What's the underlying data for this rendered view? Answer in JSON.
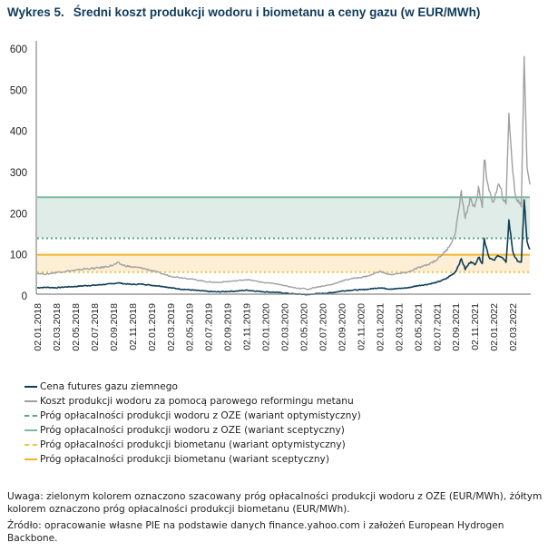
{
  "chart_data": {
    "type": "line",
    "title_number": "Wykres 5.",
    "title": "Średni koszt produkcji wodoru i biometanu a ceny gazu (w EUR/MWh)",
    "xlabel": "",
    "ylabel": "",
    "ylim": [
      0,
      600
    ],
    "yticks": [
      "0",
      "100",
      "200",
      "300",
      "400",
      "500",
      "600"
    ],
    "xticks": [
      "02.01.2018",
      "02.03.2018",
      "02.05.2018",
      "02.07.2018",
      "02.09.2018",
      "02.11.2018",
      "02.01.2019",
      "02.03.2019",
      "02.05.2019",
      "02.07.2019",
      "02.09.2019",
      "02.11.2019",
      "02.01.2020",
      "02.03.2020",
      "02.05.2020",
      "02.07.2020",
      "02.09.2020",
      "02.11.2020",
      "02.01.2021",
      "02.03.2021",
      "02.05.2021",
      "02.07.2021",
      "02.09.2021",
      "02.11.2021",
      "02.01.2022",
      "02.03.2022"
    ],
    "x_unit": "months since 02.01.2018",
    "x_range": [
      0,
      51.8
    ],
    "grid": false,
    "legend_position": "bottom-left",
    "series": [
      {
        "name": "Cena futures gazu ziemnego",
        "color": "#0d3d56",
        "style": "solid",
        "x": [
          0,
          1,
          2,
          3,
          4,
          5,
          6,
          7,
          8,
          8.5,
          9,
          10,
          11,
          12,
          13,
          14,
          15,
          16,
          17,
          18,
          19,
          20,
          21,
          22,
          23,
          24,
          25,
          26,
          27,
          28,
          28.5,
          29,
          30,
          31,
          32,
          33,
          34,
          35,
          36,
          37,
          38,
          39,
          40,
          41,
          42,
          43,
          43.8,
          44,
          44.6,
          45,
          45.6,
          46,
          46.4,
          46.8,
          47,
          47.5,
          48,
          48.5,
          49,
          49.3,
          49.6,
          50,
          50.3,
          50.6,
          50.9,
          51.2,
          51.5,
          51.8
        ],
        "values": [
          20,
          21,
          20,
          22,
          23,
          25,
          26,
          28,
          30,
          32,
          30,
          28,
          29,
          26,
          24,
          20,
          17,
          15,
          13,
          11,
          10,
          11,
          12,
          14,
          12,
          10,
          9,
          7,
          5,
          4,
          3,
          5,
          6,
          8,
          12,
          14,
          15,
          17,
          20,
          17,
          18,
          20,
          25,
          28,
          33,
          42,
          55,
          60,
          90,
          65,
          85,
          75,
          95,
          80,
          139,
          95,
          85,
          100,
          90,
          80,
          183,
          110,
          90,
          85,
          80,
          236,
          130,
          113
        ]
      },
      {
        "name": "Koszt produkcji wodoru za pomocą parowego reformingu metanu",
        "color": "#a0a0a0",
        "style": "solid",
        "x": [
          0,
          1,
          2,
          3,
          4,
          5,
          6,
          7,
          8,
          8.5,
          9,
          10,
          11,
          12,
          13,
          14,
          15,
          16,
          17,
          18,
          19,
          20,
          21,
          22,
          23,
          24,
          25,
          26,
          27,
          28,
          28.5,
          29,
          30,
          31,
          32,
          33,
          34,
          35,
          36,
          37,
          38,
          39,
          40,
          41,
          42,
          43,
          43.8,
          44,
          44.6,
          45,
          45.6,
          46,
          46.4,
          46.8,
          47,
          47.5,
          48,
          48.5,
          49,
          49.3,
          49.6,
          50,
          50.3,
          50.6,
          50.9,
          51.2,
          51.5,
          51.8
        ],
        "values": [
          55,
          53,
          57,
          60,
          62,
          66,
          67,
          70,
          75,
          80,
          75,
          70,
          68,
          62,
          55,
          48,
          45,
          42,
          38,
          34,
          33,
          35,
          37,
          40,
          36,
          32,
          30,
          25,
          20,
          18,
          16,
          20,
          24,
          28,
          36,
          42,
          45,
          50,
          60,
          52,
          54,
          58,
          68,
          75,
          88,
          110,
          140,
          160,
          250,
          190,
          240,
          210,
          260,
          220,
          338,
          250,
          230,
          270,
          240,
          220,
          447,
          300,
          240,
          230,
          220,
          580,
          320,
          271
        ]
      }
    ],
    "thresholds": [
      {
        "name": "Próg opłacalności produkcji wodoru z OZE (wariant optymistyczny)",
        "value": 140,
        "color": "#5ea58d",
        "style": "dotted"
      },
      {
        "name": "Próg opłacalności produkcji wodoru z OZE (wariant sceptyczny)",
        "value": 240,
        "color": "#7fbba4",
        "style": "solid"
      },
      {
        "name": "Próg opłacalności produkcji biometanu (wariant optymistyczny)",
        "value": 58,
        "color": "#f3c445",
        "style": "dotted"
      },
      {
        "name": "Próg opłacalności produkcji biometanu (wariant sceptyczny)",
        "value": 100,
        "color": "#f0b429",
        "style": "solid"
      }
    ],
    "bands": [
      {
        "from": 140,
        "to": 240,
        "color": "#dfece7"
      },
      {
        "from": 58,
        "to": 100,
        "color": "#fcefd6"
      }
    ]
  },
  "legend": [
    {
      "label": "Cena futures gazu ziemnego",
      "color": "#0d3d56",
      "style": "solid"
    },
    {
      "label": "Koszt produkcji wodoru za pomocą parowego reformingu metanu",
      "color": "#a0a0a0",
      "style": "solid"
    },
    {
      "label": "Próg opłacalności produkcji wodoru z OZE (wariant optymistyczny)",
      "color": "#5ea58d",
      "style": "dashed"
    },
    {
      "label": "Próg opłacalności produkcji wodoru z OZE (wariant sceptyczny)",
      "color": "#7fbba4",
      "style": "solid"
    },
    {
      "label": "Próg opłacalności produkcji biometanu (wariant optymistyczny)",
      "color": "#f3c445",
      "style": "dashed"
    },
    {
      "label": "Próg opłacalności produkcji biometanu (wariant sceptyczny)",
      "color": "#f0b429",
      "style": "solid"
    }
  ],
  "notes": {
    "uwaga": "Uwaga: zielonym kolorem oznaczono szacowany próg opłacalności produkcji wodoru z OZE (EUR/MWh), żółtym kolorem oznaczono próg opłacalności produkcji biometanu (EUR/MWh).",
    "zrodlo": "Źródło: opracowanie własne PIE na podstawie danych finance.yahoo.com i założeń European Hydrogen Backbone."
  }
}
